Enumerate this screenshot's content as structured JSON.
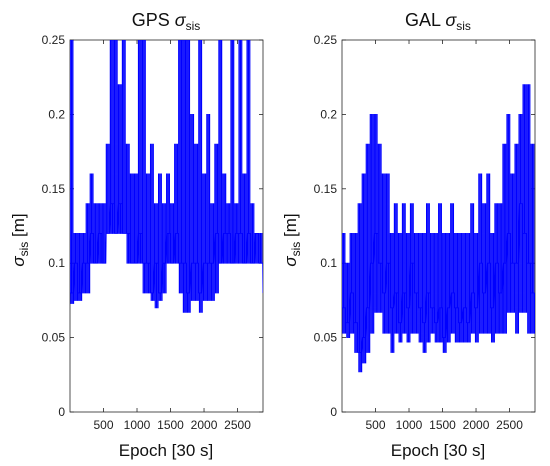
{
  "figure": {
    "panels": [
      {
        "title": {
          "prefix": "GPS ",
          "symbol": "σ",
          "subscript": "sis"
        },
        "xlabel": "Epoch [30 s]",
        "ylabel": {
          "symbol": "σ",
          "subscript": "sis",
          "unit": "[m]"
        }
      },
      {
        "title": {
          "prefix": "GAL ",
          "symbol": "σ",
          "subscript": "sis"
        },
        "xlabel": "Epoch [30 s]",
        "ylabel": {
          "symbol": "σ",
          "subscript": "sis",
          "unit": "[m]"
        }
      }
    ]
  },
  "chart_data": [
    {
      "type": "line",
      "title": "GPS σ_sis",
      "xlabel": "Epoch [30 s]",
      "ylabel": "σ_sis [m]",
      "xlim": [
        0,
        2880
      ],
      "ylim": [
        0,
        0.25
      ],
      "xticks": [
        500,
        1000,
        1500,
        2000,
        2500
      ],
      "yticks": [
        0,
        0.05,
        0.1,
        0.15,
        0.2,
        0.25
      ],
      "grid": false,
      "color": "#0000ff",
      "series": [
        {
          "x": [
            0,
            60,
            120,
            180,
            240,
            300,
            360,
            420,
            480,
            540,
            600,
            660,
            720,
            780,
            840,
            900,
            960,
            1020,
            1080,
            1140,
            1200,
            1260,
            1320,
            1380,
            1440,
            1500,
            1560,
            1620,
            1680,
            1740,
            1800,
            1860,
            1920,
            1980,
            2040,
            2100,
            2160,
            2220,
            2280,
            2340,
            2400,
            2460,
            2520,
            2580,
            2640,
            2700,
            2760,
            2820,
            2880
          ],
          "y": [
            0.08,
            0.1,
            0.08,
            0.1,
            0.1,
            0.12,
            0.1,
            0.12,
            0.1,
            0.12,
            0.14,
            0.12,
            0.14,
            0.12,
            0.12,
            0.1,
            0.1,
            0.12,
            0.1,
            0.1,
            0.08,
            0.1,
            0.08,
            0.1,
            0.12,
            0.1,
            0.12,
            0.1,
            0.1,
            0.08,
            0.1,
            0.1,
            0.08,
            0.1,
            0.1,
            0.1,
            0.12,
            0.1,
            0.12,
            0.12,
            0.1,
            0.12,
            0.12,
            0.1,
            0.12,
            0.1,
            0.12,
            0.1,
            0.08
          ],
          "lower": [
            0.073,
            0.075,
            0.075,
            0.08,
            0.08,
            0.1,
            0.1,
            0.1,
            0.1,
            0.12,
            0.12,
            0.12,
            0.12,
            0.12,
            0.1,
            0.1,
            0.1,
            0.1,
            0.08,
            0.08,
            0.075,
            0.07,
            0.075,
            0.08,
            0.1,
            0.1,
            0.1,
            0.08,
            0.067,
            0.067,
            0.075,
            0.075,
            0.067,
            0.075,
            0.075,
            0.075,
            0.08,
            0.1,
            0.1,
            0.1,
            0.1,
            0.1,
            0.1,
            0.1,
            0.1,
            0.1,
            0.1,
            0.1,
            0.08
          ],
          "upper": [
            0.25,
            0.12,
            0.12,
            0.12,
            0.14,
            0.16,
            0.14,
            0.14,
            0.14,
            0.18,
            0.25,
            0.25,
            0.22,
            0.25,
            0.18,
            0.16,
            0.16,
            0.25,
            0.25,
            0.16,
            0.18,
            0.14,
            0.16,
            0.14,
            0.16,
            0.14,
            0.18,
            0.25,
            0.25,
            0.25,
            0.2,
            0.18,
            0.25,
            0.16,
            0.2,
            0.14,
            0.18,
            0.25,
            0.16,
            0.14,
            0.25,
            0.14,
            0.25,
            0.16,
            0.25,
            0.14,
            0.12,
            0.12,
            0.12
          ]
        }
      ]
    },
    {
      "type": "line",
      "title": "GAL σ_sis",
      "xlabel": "Epoch [30 s]",
      "ylabel": "σ_sis [m]",
      "xlim": [
        0,
        2880
      ],
      "ylim": [
        0,
        0.25
      ],
      "xticks": [
        500,
        1000,
        1500,
        2000,
        2500
      ],
      "yticks": [
        0,
        0.05,
        0.1,
        0.15,
        0.2,
        0.25
      ],
      "grid": false,
      "color": "#0000ff",
      "series": [
        {
          "x": [
            0,
            60,
            120,
            180,
            240,
            300,
            360,
            420,
            480,
            540,
            600,
            660,
            720,
            780,
            840,
            900,
            960,
            1020,
            1080,
            1140,
            1200,
            1260,
            1320,
            1380,
            1440,
            1500,
            1560,
            1620,
            1680,
            1740,
            1800,
            1860,
            1920,
            1980,
            2040,
            2100,
            2160,
            2220,
            2280,
            2340,
            2400,
            2460,
            2520,
            2580,
            2640,
            2700,
            2760,
            2820,
            2880
          ],
          "y": [
            0.07,
            0.06,
            0.08,
            0.06,
            0.04,
            0.05,
            0.07,
            0.1,
            0.12,
            0.1,
            0.08,
            0.1,
            0.07,
            0.08,
            0.06,
            0.08,
            0.07,
            0.1,
            0.08,
            0.07,
            0.06,
            0.08,
            0.07,
            0.06,
            0.07,
            0.05,
            0.07,
            0.08,
            0.07,
            0.06,
            0.07,
            0.06,
            0.08,
            0.07,
            0.1,
            0.08,
            0.1,
            0.07,
            0.1,
            0.08,
            0.1,
            0.12,
            0.1,
            0.1,
            0.14,
            0.12,
            0.1,
            0.08,
            0.06
          ],
          "lower": [
            0.053,
            0.05,
            0.053,
            0.04,
            0.027,
            0.033,
            0.04,
            0.053,
            0.067,
            0.067,
            0.053,
            0.053,
            0.04,
            0.053,
            0.047,
            0.053,
            0.047,
            0.053,
            0.053,
            0.047,
            0.04,
            0.047,
            0.053,
            0.047,
            0.047,
            0.04,
            0.047,
            0.053,
            0.047,
            0.047,
            0.047,
            0.047,
            0.053,
            0.047,
            0.053,
            0.053,
            0.053,
            0.047,
            0.053,
            0.053,
            0.053,
            0.067,
            0.067,
            0.053,
            0.067,
            0.067,
            0.053,
            0.053,
            0.047
          ],
          "upper": [
            0.12,
            0.1,
            0.12,
            0.12,
            0.14,
            0.16,
            0.18,
            0.2,
            0.2,
            0.18,
            0.16,
            0.16,
            0.12,
            0.14,
            0.12,
            0.14,
            0.12,
            0.14,
            0.12,
            0.12,
            0.12,
            0.14,
            0.12,
            0.12,
            0.14,
            0.12,
            0.12,
            0.14,
            0.12,
            0.12,
            0.12,
            0.12,
            0.14,
            0.12,
            0.16,
            0.14,
            0.16,
            0.12,
            0.14,
            0.14,
            0.18,
            0.2,
            0.16,
            0.18,
            0.2,
            0.22,
            0.22,
            0.18,
            0.12
          ]
        }
      ]
    }
  ]
}
